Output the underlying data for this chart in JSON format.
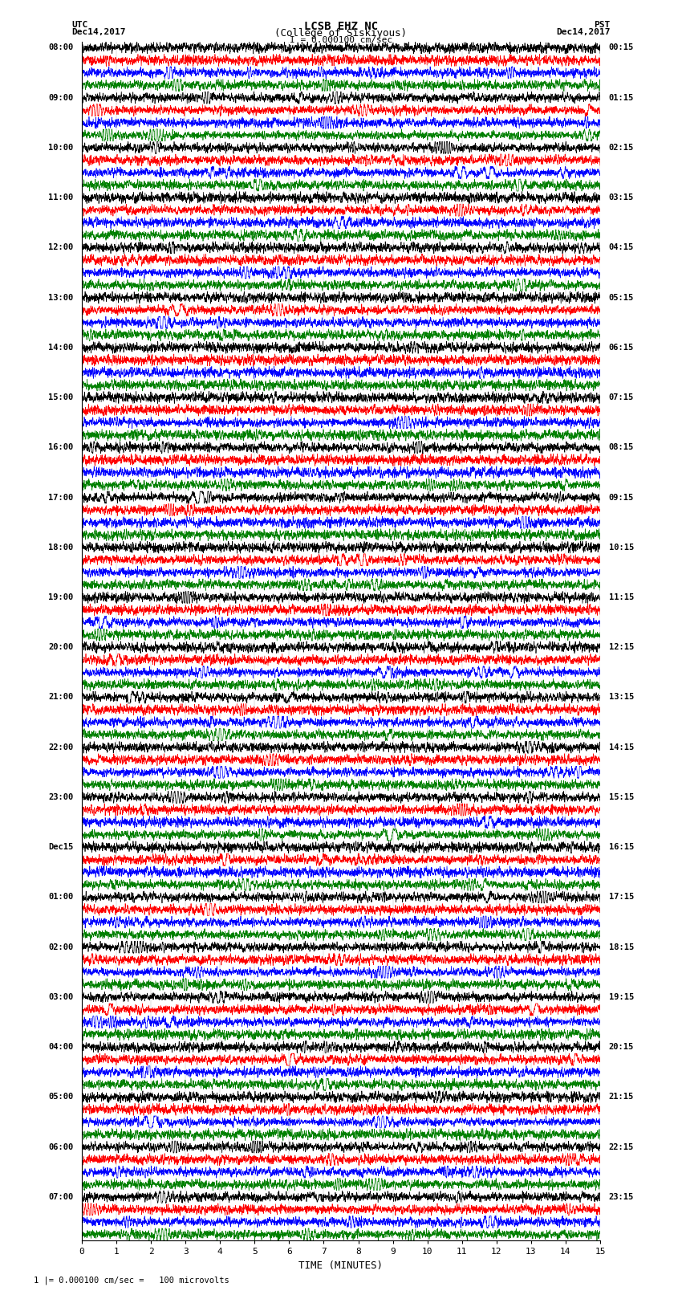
{
  "title_line1": "LCSB EHZ NC",
  "title_line2": "(College of Siskiyous)",
  "title_line3": "I = 0.000100 cm/sec",
  "label_utc": "UTC",
  "label_pst": "PST",
  "date_left": "Dec14,2017",
  "date_right": "Dec14,2017",
  "xlabel": "TIME (MINUTES)",
  "footer": "1 |= 0.000100 cm/sec =   100 microvolts",
  "xlim": [
    0,
    15
  ],
  "xticks": [
    0,
    1,
    2,
    3,
    4,
    5,
    6,
    7,
    8,
    9,
    10,
    11,
    12,
    13,
    14,
    15
  ],
  "bg_color": "#ffffff",
  "trace_colors": [
    "black",
    "red",
    "blue",
    "green"
  ],
  "num_traces": 96,
  "left_labels_utc": [
    "08:00",
    "",
    "",
    "",
    "09:00",
    "",
    "",
    "",
    "10:00",
    "",
    "",
    "",
    "11:00",
    "",
    "",
    "",
    "12:00",
    "",
    "",
    "",
    "13:00",
    "",
    "",
    "",
    "14:00",
    "",
    "",
    "",
    "15:00",
    "",
    "",
    "",
    "16:00",
    "",
    "",
    "",
    "17:00",
    "",
    "",
    "",
    "18:00",
    "",
    "",
    "",
    "19:00",
    "",
    "",
    "",
    "20:00",
    "",
    "",
    "",
    "21:00",
    "",
    "",
    "",
    "22:00",
    "",
    "",
    "",
    "23:00",
    "",
    "",
    "",
    "Dec15",
    "",
    "",
    "",
    "01:00",
    "",
    "",
    "",
    "02:00",
    "",
    "",
    "",
    "03:00",
    "",
    "",
    "",
    "04:00",
    "",
    "",
    "",
    "05:00",
    "",
    "",
    "",
    "06:00",
    "",
    "",
    "",
    "07:00",
    "",
    "",
    ""
  ],
  "right_labels_pst": [
    "00:15",
    "",
    "",
    "",
    "01:15",
    "",
    "",
    "",
    "02:15",
    "",
    "",
    "",
    "03:15",
    "",
    "",
    "",
    "04:15",
    "",
    "",
    "",
    "05:15",
    "",
    "",
    "",
    "06:15",
    "",
    "",
    "",
    "07:15",
    "",
    "",
    "",
    "08:15",
    "",
    "",
    "",
    "09:15",
    "",
    "",
    "",
    "10:15",
    "",
    "",
    "",
    "11:15",
    "",
    "",
    "",
    "12:15",
    "",
    "",
    "",
    "13:15",
    "",
    "",
    "",
    "14:15",
    "",
    "",
    "",
    "15:15",
    "",
    "",
    "",
    "16:15",
    "",
    "",
    "",
    "17:15",
    "",
    "",
    "",
    "18:15",
    "",
    "",
    "",
    "19:15",
    "",
    "",
    "",
    "20:15",
    "",
    "",
    "",
    "21:15",
    "",
    "",
    "",
    "22:15",
    "",
    "",
    "",
    "23:15",
    "",
    "",
    ""
  ],
  "noise_seed": 42
}
